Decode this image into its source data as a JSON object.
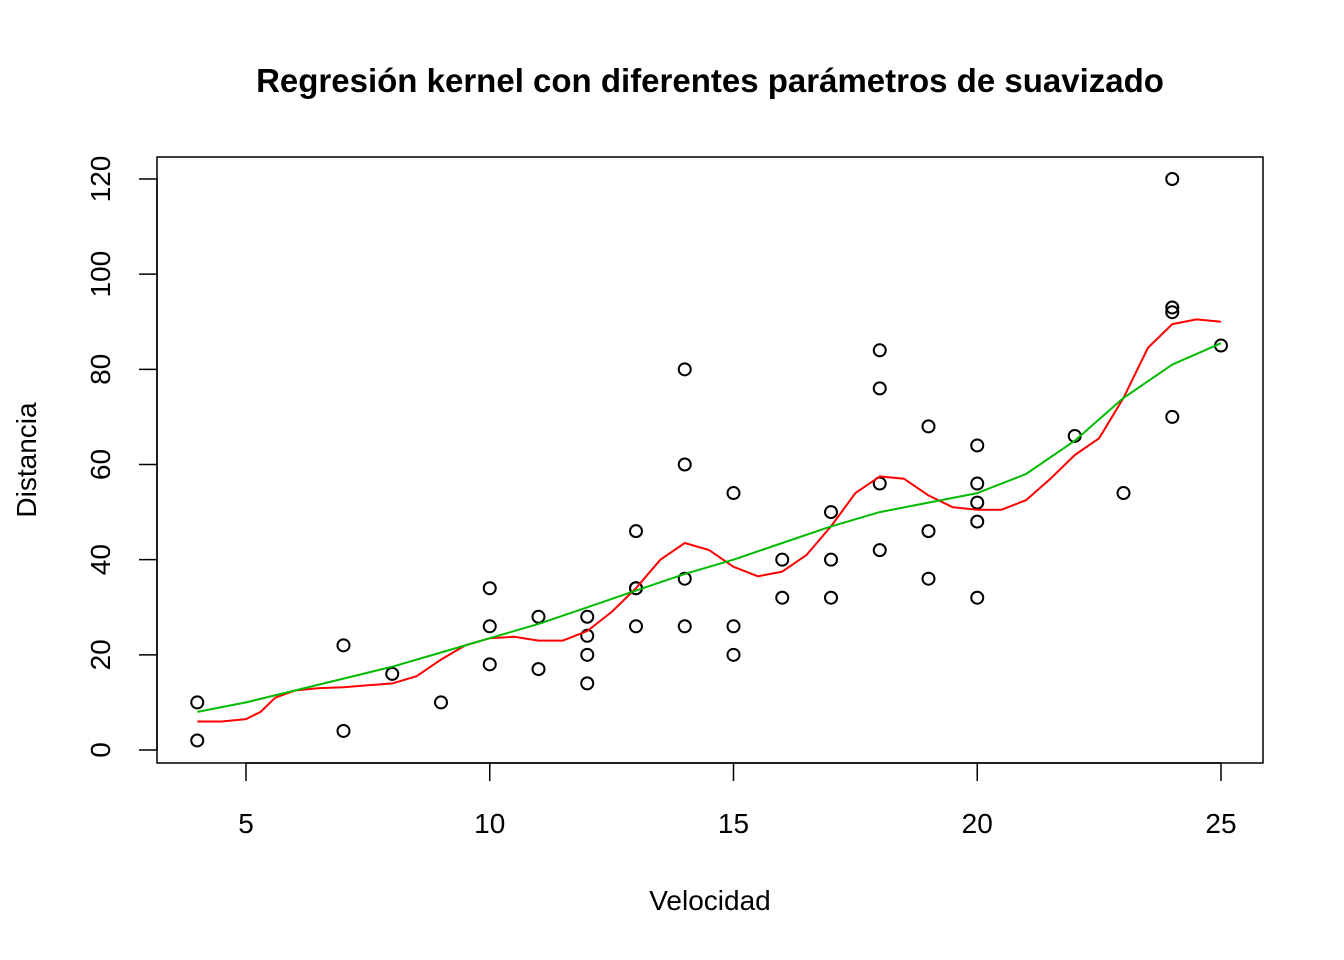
{
  "chart_data": {
    "type": "scatter",
    "title": "Regresión kernel con diferentes parámetros de suavizado",
    "xlabel": "Velocidad",
    "ylabel": "Distancia",
    "xlim": [
      4,
      25
    ],
    "ylim": [
      0,
      120
    ],
    "x_ticks": [
      5,
      10,
      15,
      20,
      25
    ],
    "y_ticks": [
      0,
      20,
      40,
      60,
      80,
      100,
      120
    ],
    "grid": false,
    "legend": "none",
    "points": {
      "x": [
        4,
        4,
        7,
        7,
        8,
        9,
        10,
        10,
        10,
        11,
        11,
        12,
        12,
        12,
        12,
        13,
        13,
        13,
        13,
        14,
        14,
        14,
        14,
        15,
        15,
        15,
        16,
        16,
        17,
        17,
        17,
        18,
        18,
        18,
        18,
        19,
        19,
        19,
        20,
        20,
        20,
        20,
        20,
        22,
        23,
        24,
        24,
        24,
        24,
        25
      ],
      "y": [
        2,
        10,
        4,
        22,
        16,
        10,
        18,
        26,
        34,
        17,
        28,
        14,
        20,
        24,
        28,
        26,
        34,
        34,
        46,
        26,
        36,
        60,
        80,
        20,
        26,
        54,
        32,
        40,
        32,
        40,
        50,
        42,
        56,
        76,
        84,
        36,
        46,
        68,
        32,
        48,
        52,
        56,
        64,
        66,
        54,
        70,
        92,
        93,
        120,
        85
      ]
    },
    "series": [
      {
        "color": "#ff0000",
        "x": [
          4,
          4.5,
          5,
          5.3,
          5.6,
          6,
          6.5,
          7,
          7.5,
          8,
          8.5,
          9,
          9.5,
          10,
          10.5,
          11,
          11.5,
          12,
          12.5,
          13,
          13.5,
          14,
          14.5,
          15,
          15.5,
          16,
          16.5,
          17,
          17.5,
          18,
          18.5,
          19,
          19.5,
          20,
          20.5,
          21,
          21.5,
          22,
          22.5,
          23,
          23.5,
          24,
          24.5,
          25
        ],
        "y": [
          6,
          6,
          6.5,
          8,
          11,
          12.5,
          13,
          13.2,
          13.6,
          14,
          15.5,
          19,
          22,
          23.5,
          23.8,
          23,
          23,
          25,
          29,
          34,
          40,
          43.5,
          42,
          38.5,
          36.5,
          37.5,
          41,
          47,
          54,
          57.5,
          57,
          53.5,
          51,
          50.5,
          50.5,
          52.5,
          57,
          62,
          65.5,
          74,
          84.5,
          89.5,
          90.5,
          90
        ]
      },
      {
        "color": "#00bb00",
        "x": [
          4,
          5,
          6,
          7,
          8,
          9,
          10,
          11,
          12,
          13,
          14,
          15,
          16,
          17,
          18,
          19,
          20,
          21,
          22,
          23,
          24,
          25
        ],
        "y": [
          8,
          10,
          12.5,
          15,
          17.5,
          20.5,
          23.5,
          26.5,
          30,
          33.5,
          37,
          40,
          43.5,
          47,
          50,
          52,
          54,
          58,
          65,
          74,
          81,
          85.5
        ]
      }
    ]
  }
}
